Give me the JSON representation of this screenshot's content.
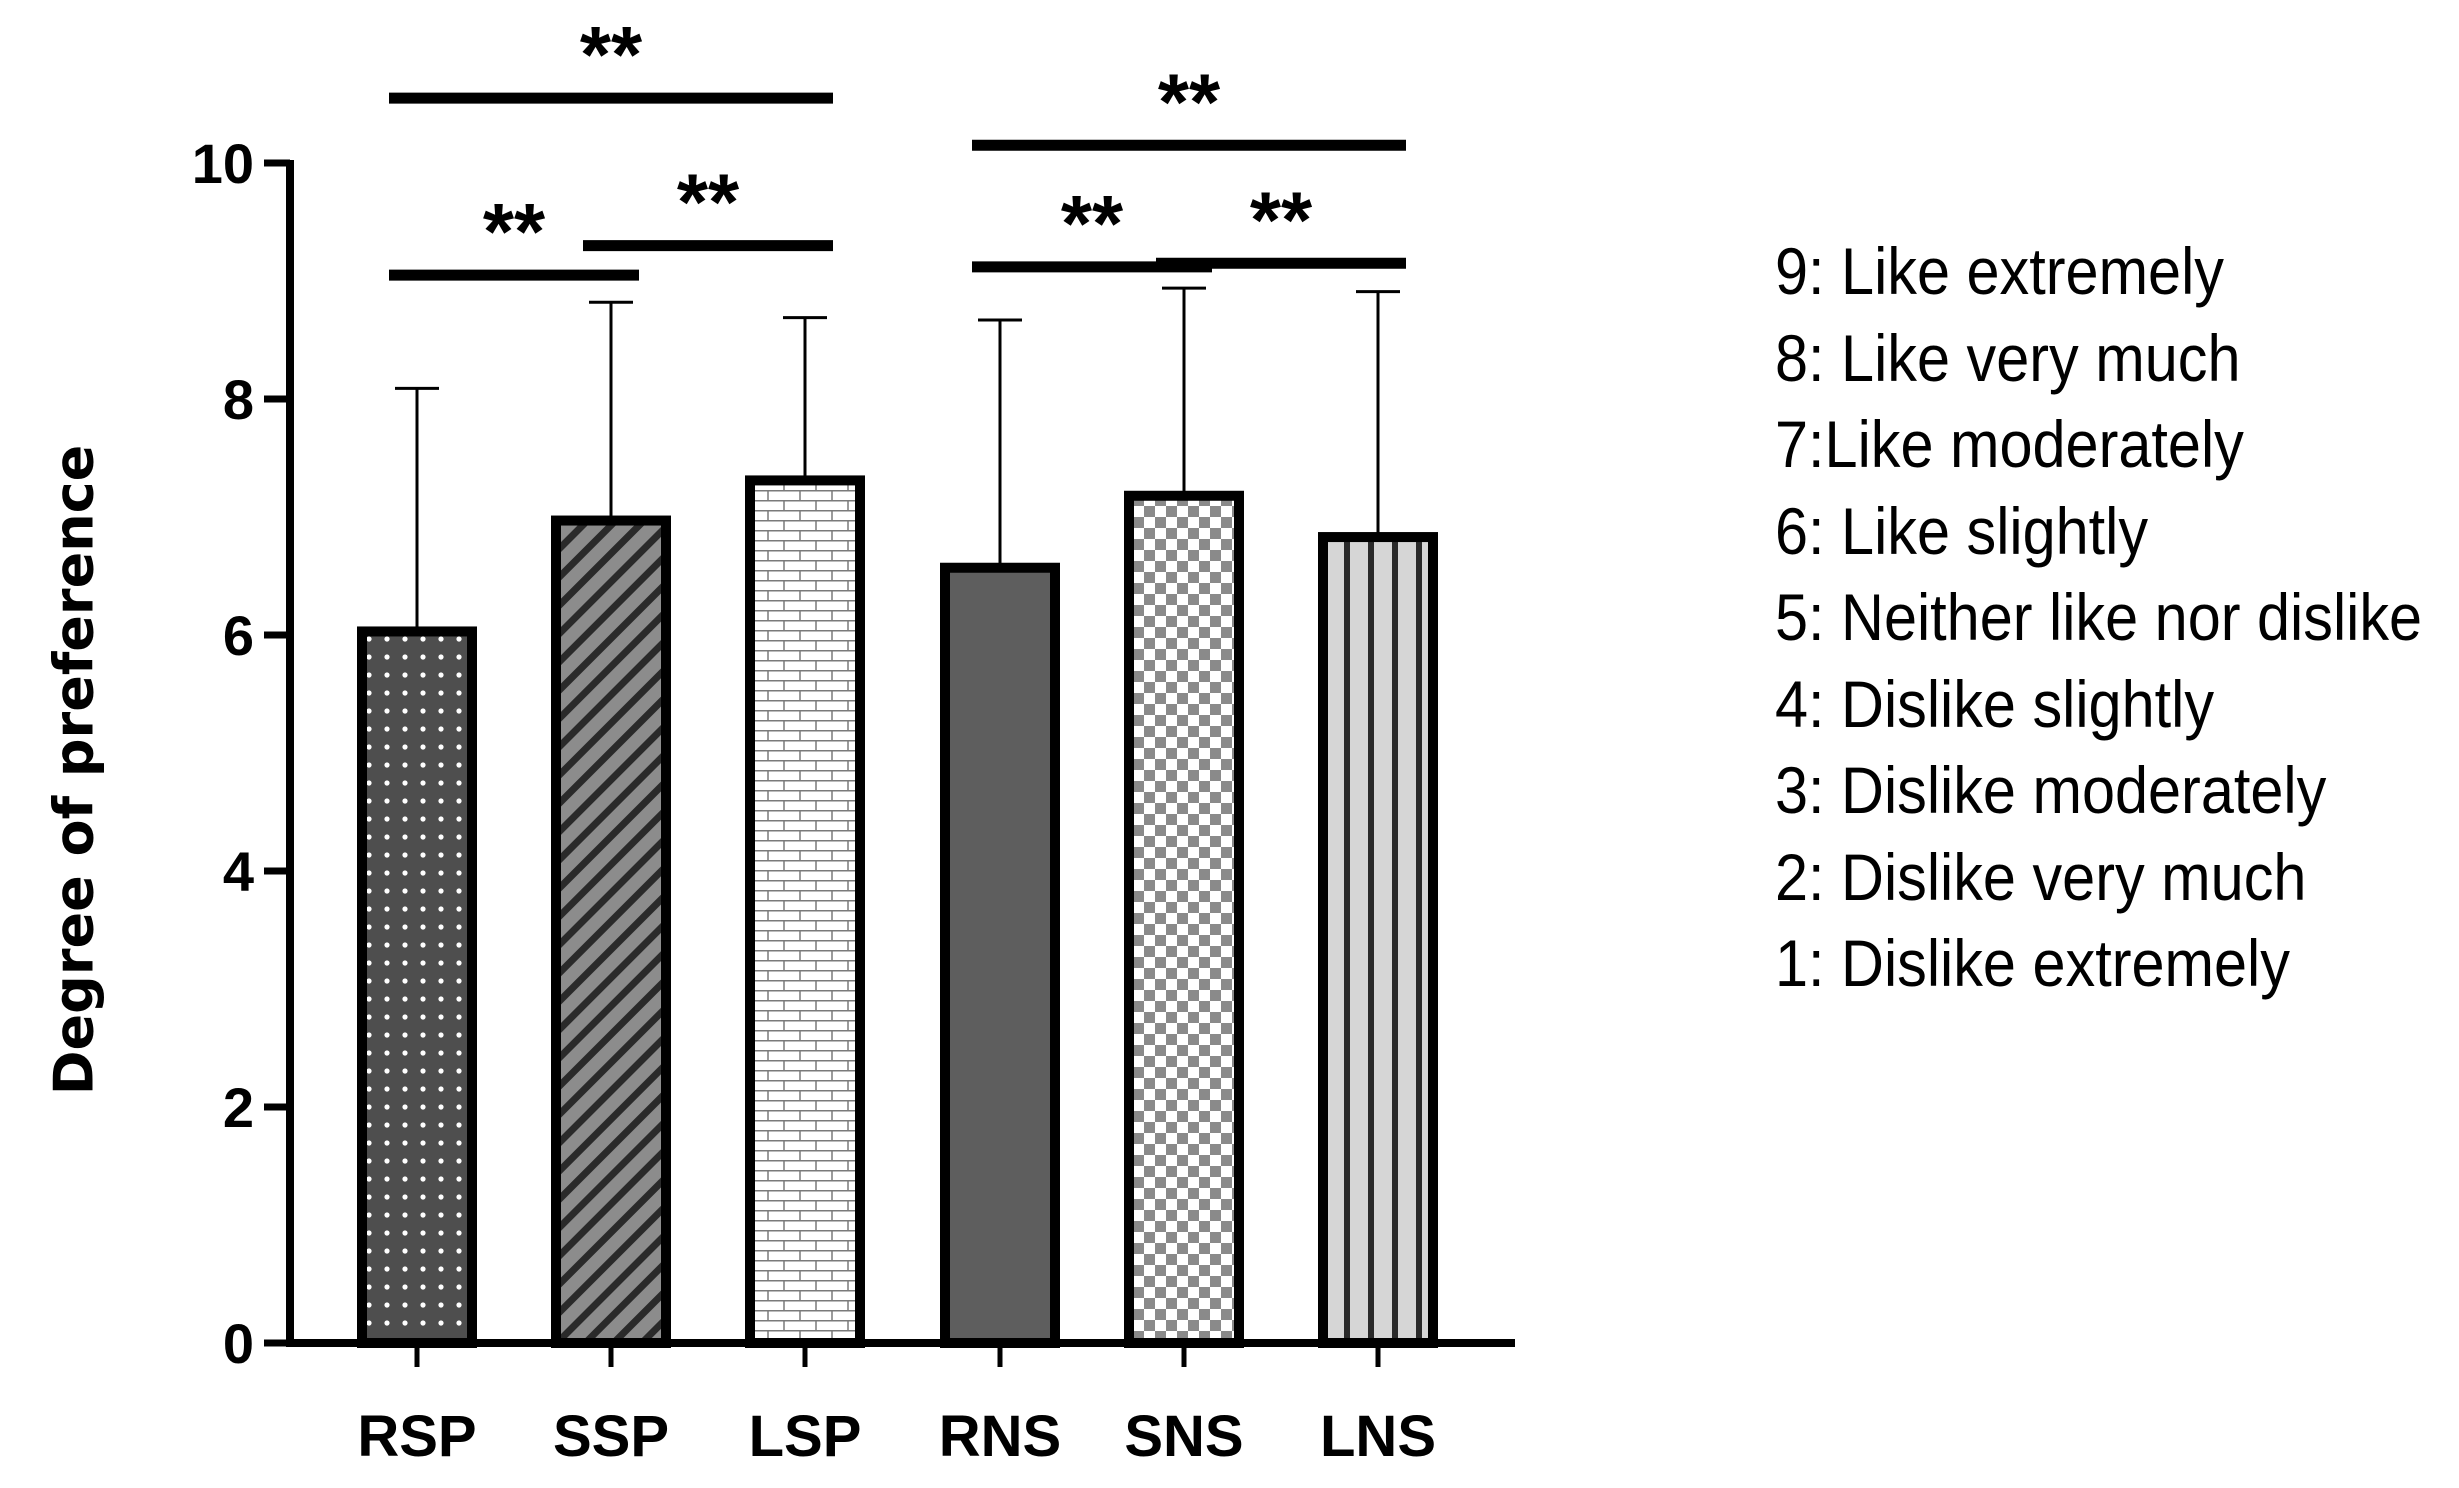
{
  "chart_data": {
    "type": "bar",
    "title": "",
    "xlabel": "",
    "ylabel": "Degree of preference",
    "ylim": [
      0,
      10
    ],
    "yticks": [
      0,
      2,
      4,
      6,
      8,
      10
    ],
    "categories": [
      "RSP",
      "SSP",
      "LSP",
      "RNS",
      "SNS",
      "LNS"
    ],
    "values": [
      6.03,
      6.97,
      7.31,
      6.57,
      7.18,
      6.83
    ],
    "error_upper": [
      8.09,
      8.82,
      8.69,
      8.67,
      8.94,
      8.91
    ],
    "patterns": [
      "dots",
      "diagonal",
      "brick",
      "solid-dark",
      "checker",
      "vertical-stripes"
    ],
    "significance": [
      {
        "from": 0,
        "to": 1,
        "label": "**",
        "y": 9.05
      },
      {
        "from": 1,
        "to": 2,
        "label": "**",
        "y": 9.3
      },
      {
        "from": 0,
        "to": 2,
        "label": "**",
        "y": 10.55
      },
      {
        "from": 3,
        "to": 4,
        "label": "**",
        "y": 9.12
      },
      {
        "from": 4,
        "to": 5,
        "label": "**",
        "y": 9.15
      },
      {
        "from": 3,
        "to": 5,
        "label": "**",
        "y": 10.15
      }
    ],
    "legend": [
      "9: Like extremely",
      "8: Like very much",
      "7:Like moderately",
      "6: Like slightly",
      "5: Neither like nor dislike",
      "4: Dislike slightly",
      "3: Dislike moderately",
      "2: Dislike very much",
      "1: Dislike extremely"
    ]
  }
}
